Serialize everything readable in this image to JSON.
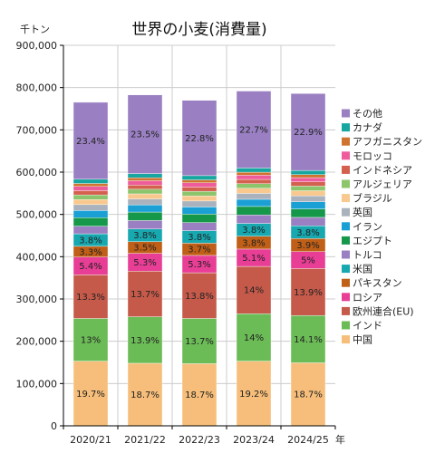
{
  "chart_data": {
    "type": "bar",
    "stacked": true,
    "title": "世界の小麦(消費量)",
    "unit_label": "千トン",
    "x_unit_label": "年",
    "categories": [
      "2020/21",
      "2021/22",
      "2022/23",
      "2023/24",
      "2024/25"
    ],
    "ylim": [
      0,
      900000
    ],
    "yticks": [
      0,
      100000,
      200000,
      300000,
      400000,
      500000,
      600000,
      700000,
      800000,
      900000
    ],
    "ytick_labels": [
      "0",
      "100,000",
      "200,000",
      "300,000",
      "400,000",
      "500,000",
      "600,000",
      "700,000",
      "800,000",
      "900,000"
    ],
    "grid": true,
    "legend_position": "right",
    "series": [
      {
        "name": "中国",
        "color": "#F6BE7A",
        "values": [
          153000,
          148000,
          147000,
          153000,
          149000
        ],
        "labels": [
          "19.7%",
          "18.7%",
          "18.7%",
          "19.2%",
          "18.7%"
        ]
      },
      {
        "name": "インド",
        "color": "#6BBB56",
        "values": [
          101000,
          110000,
          107000,
          112000,
          112000
        ],
        "labels": [
          "13%",
          "13.9%",
          "13.7%",
          "14%",
          "14.1%"
        ]
      },
      {
        "name": "欧州連合(EU)",
        "color": "#C55A4A",
        "values": [
          103000,
          108000,
          108000,
          112000,
          111000
        ],
        "labels": [
          "13.3%",
          "13.7%",
          "13.8%",
          "14%",
          "13.9%"
        ]
      },
      {
        "name": "ロシア",
        "color": "#E83E96",
        "values": [
          42000,
          42000,
          41000,
          41000,
          40000
        ],
        "labels": [
          "5.4%",
          "5.3%",
          "5.3%",
          "5.1%",
          "5%"
        ]
      },
      {
        "name": "パキスタン",
        "color": "#C05F17",
        "values": [
          25600,
          27600,
          29000,
          30400,
          31000
        ],
        "labels": [
          "3.3%",
          "3.5%",
          "3.7%",
          "3.8%",
          "3.9%"
        ]
      },
      {
        "name": "米国",
        "color": "#17A8B0",
        "values": [
          29600,
          30000,
          29700,
          30400,
          30000
        ],
        "labels": [
          "3.8%",
          "3.8%",
          "3.8%",
          "3.8%",
          "3.8%"
        ]
      },
      {
        "name": "トルコ",
        "color": "#9A80C2",
        "values": [
          18000,
          20000,
          19000,
          20000,
          20000
        ],
        "labels": [
          "",
          "",
          "",
          "",
          ""
        ]
      },
      {
        "name": "エジプト",
        "color": "#15984A",
        "values": [
          20000,
          20000,
          20000,
          20000,
          20000
        ],
        "labels": [
          "",
          "",
          "",
          "",
          ""
        ]
      },
      {
        "name": "イラン",
        "color": "#1BA0D6",
        "values": [
          17000,
          17000,
          17000,
          17000,
          17000
        ],
        "labels": [
          "",
          "",
          "",
          "",
          ""
        ]
      },
      {
        "name": "英国",
        "color": "#AAB2BD",
        "values": [
          14000,
          14000,
          14000,
          14000,
          14000
        ],
        "labels": [
          "",
          "",
          "",
          "",
          ""
        ]
      },
      {
        "name": "ブラジル",
        "color": "#F8C88E",
        "values": [
          12000,
          12000,
          12000,
          12000,
          12000
        ],
        "labels": [
          "",
          "",
          "",
          "",
          ""
        ]
      },
      {
        "name": "アルジェリア",
        "color": "#8CC56B",
        "values": [
          11000,
          11000,
          11000,
          11000,
          11000
        ],
        "labels": [
          "",
          "",
          "",
          "",
          ""
        ]
      },
      {
        "name": "インドネシア",
        "color": "#D4604E",
        "values": [
          10000,
          10000,
          10000,
          10000,
          10000
        ],
        "labels": [
          "",
          "",
          "",
          "",
          ""
        ]
      },
      {
        "name": "モロッコ",
        "color": "#EE5C9C",
        "values": [
          10000,
          10000,
          10000,
          10000,
          10000
        ],
        "labels": [
          "",
          "",
          "",
          "",
          ""
        ]
      },
      {
        "name": "アフガニスタン",
        "color": "#D0732E",
        "values": [
          7000,
          7000,
          7000,
          7000,
          7000
        ],
        "labels": [
          "",
          "",
          "",
          "",
          ""
        ]
      },
      {
        "name": "カナダ",
        "color": "#17A7A0",
        "values": [
          10000,
          10000,
          10000,
          10000,
          10000
        ],
        "labels": [
          "",
          "",
          "",
          "",
          ""
        ]
      },
      {
        "name": "その他",
        "color": "#9A80C2",
        "values": [
          182000,
          186000,
          178000,
          182000,
          182000
        ],
        "labels": [
          "23.4%",
          "23.5%",
          "22.8%",
          "22.7%",
          "22.9%"
        ]
      }
    ]
  }
}
